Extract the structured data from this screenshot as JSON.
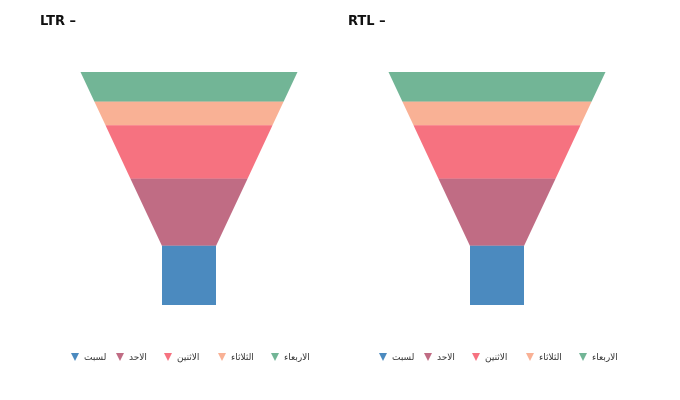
{
  "charts": [
    {
      "title": "LTR –",
      "direction": "ltr"
    },
    {
      "title": "RTL –",
      "direction": "rtl"
    }
  ],
  "chart_data": [
    {
      "type": "funnel",
      "title": "LTR –",
      "legend_position": "bottom-center",
      "series": [
        {
          "name": "الاربعاء",
          "color": "#72b596",
          "value": 0.15
        },
        {
          "name": "الثلاثاء",
          "color": "#f9b195",
          "value": 0.12
        },
        {
          "name": "الاثنين",
          "color": "#f67280",
          "value": 0.27
        },
        {
          "name": "الاحد",
          "color": "#c06c84",
          "value": 0.34
        },
        {
          "name": "لسبت",
          "color": "#4b8abf",
          "value": 0.3
        }
      ]
    },
    {
      "type": "funnel",
      "title": "RTL –",
      "legend_position": "bottom-center",
      "series": [
        {
          "name": "الاربعاء",
          "color": "#72b596",
          "value": 0.15
        },
        {
          "name": "الثلاثاء",
          "color": "#f9b195",
          "value": 0.12
        },
        {
          "name": "الاثنين",
          "color": "#f67280",
          "value": 0.27
        },
        {
          "name": "الاحد",
          "color": "#c06c84",
          "value": 0.34
        },
        {
          "name": "لسبت",
          "color": "#4b8abf",
          "value": 0.3
        }
      ]
    }
  ]
}
